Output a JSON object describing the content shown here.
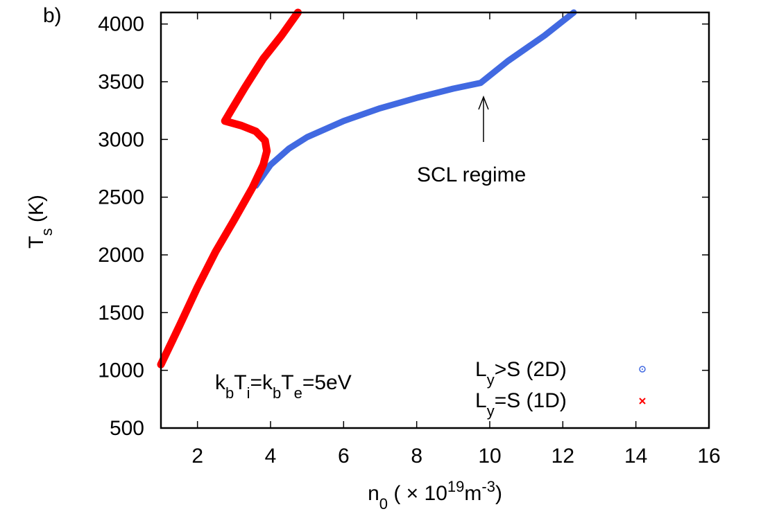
{
  "panel_label": "b)",
  "chart_data": {
    "type": "line",
    "xlabel": "n₀ (×10¹⁹m⁻³)",
    "ylabel": "T_s (K)",
    "xlim": [
      1,
      16
    ],
    "ylim": [
      500,
      4100
    ],
    "x_ticks": [
      "2",
      "4",
      "6",
      "8",
      "10",
      "12",
      "14",
      "16"
    ],
    "y_ticks": [
      "500",
      "1000",
      "1500",
      "2000",
      "2500",
      "3000",
      "3500",
      "4000"
    ],
    "legend": "bottom-right",
    "series": [
      {
        "name": "Ly>S (2D)",
        "color": "#4169e1",
        "marker": "circle",
        "points": [
          [
            3.6,
            2600
          ],
          [
            4.0,
            2780
          ],
          [
            4.5,
            2920
          ],
          [
            5.0,
            3020
          ],
          [
            6.0,
            3160
          ],
          [
            7.0,
            3270
          ],
          [
            8.0,
            3360
          ],
          [
            9.0,
            3440
          ],
          [
            9.75,
            3490
          ],
          [
            10.5,
            3680
          ],
          [
            11.5,
            3900
          ],
          [
            12.3,
            4100
          ]
        ]
      },
      {
        "name": "Ly=S (1D)",
        "color": "#ff0000",
        "marker": "x",
        "points": [
          [
            1.0,
            1050
          ],
          [
            1.5,
            1380
          ],
          [
            2.0,
            1720
          ],
          [
            2.5,
            2030
          ],
          [
            3.0,
            2300
          ],
          [
            3.5,
            2580
          ],
          [
            3.8,
            2780
          ],
          [
            3.9,
            2900
          ],
          [
            3.85,
            2990
          ],
          [
            3.6,
            3070
          ],
          [
            3.2,
            3120
          ],
          [
            2.75,
            3160
          ],
          [
            2.9,
            3240
          ],
          [
            3.3,
            3450
          ],
          [
            3.8,
            3700
          ],
          [
            4.3,
            3900
          ],
          [
            4.75,
            4100
          ]
        ]
      }
    ],
    "legend_entries": [
      {
        "base": "L",
        "sub": "y",
        "rest": ">S (2D)"
      },
      {
        "base": "L",
        "sub": "y",
        "rest": "=S (1D)"
      }
    ],
    "annotations": {
      "condition": {
        "k1": "k",
        "b1": "b",
        "T1": "T",
        "i": "i",
        "eq": "=",
        "k2": "k",
        "b2": "b",
        "T2": "T",
        "e": "e",
        "val": "=5eV"
      },
      "arrow_label": "SCL regime",
      "arrow_target": [
        9.75,
        3490
      ]
    }
  }
}
